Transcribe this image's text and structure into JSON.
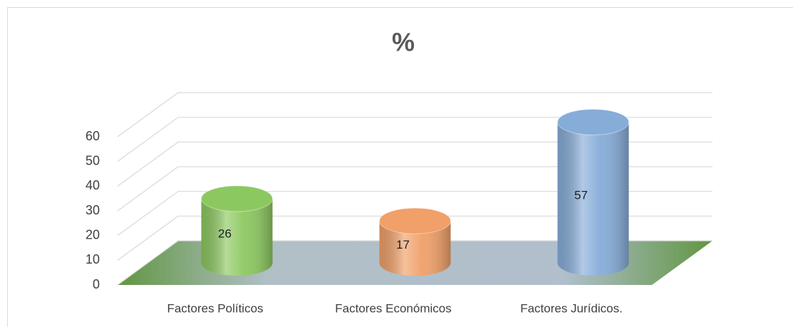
{
  "chart_data": {
    "type": "bar3d",
    "title": "%",
    "categories": [
      "Factores Políticos",
      "Factores Económicos",
      "Factores Jurídicos."
    ],
    "values": [
      26,
      17,
      57
    ],
    "colors": [
      "#8cc860",
      "#f0a068",
      "#86acd8"
    ],
    "ylim": [
      0,
      60
    ],
    "yticks": [
      0,
      10,
      20,
      30,
      40,
      50,
      60
    ],
    "grid": true
  }
}
